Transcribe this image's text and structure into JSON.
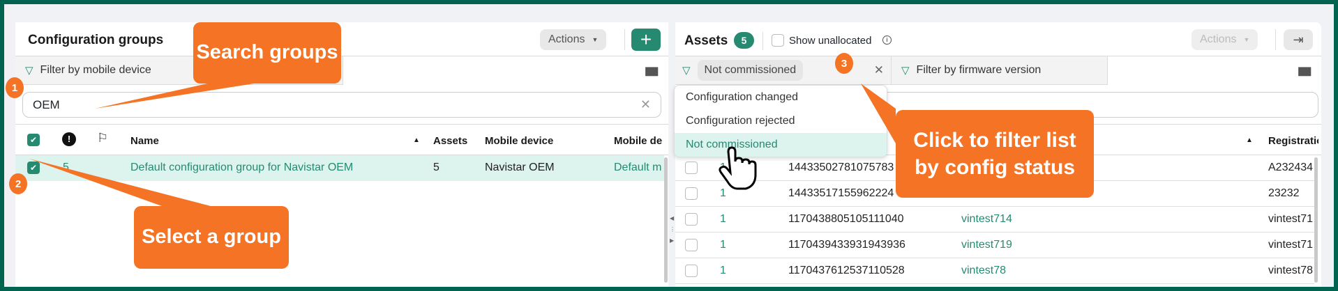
{
  "left_panel": {
    "title": "Configuration groups",
    "actions_label": "Actions",
    "add_label": "+",
    "filter_label": "Filter by mobile device",
    "search_value": "OEM",
    "columns": [
      "Name",
      "Assets",
      "Mobile device",
      "Mobile de"
    ],
    "rows": [
      {
        "alerts": "5",
        "name": "Default configuration group for Navistar OEM",
        "assets": "5",
        "mobile_device": "Navistar OEM",
        "mobile_de": "Default m",
        "selected": true
      }
    ]
  },
  "right_panel": {
    "title": "Assets",
    "count": "5",
    "show_unallocated_label": "Show unallocated",
    "actions_label": "Actions",
    "status_filter_value": "Not commissioned",
    "firmware_filter_label": "Filter by firmware version",
    "dropdown_options": [
      "Configuration changed",
      "Configuration rejected",
      "Not commissioned"
    ],
    "dropdown_selected": "Not commissioned",
    "registration_header": "Registratio",
    "rows": [
      {
        "alerts": "1",
        "id": "14433502781075783",
        "name": "",
        "registration": "A232434"
      },
      {
        "alerts": "1",
        "id": "14433517155962224",
        "name": "",
        "registration": "23232"
      },
      {
        "alerts": "1",
        "id": "1170438805105111040",
        "name": "vintest714",
        "registration": "vintest71"
      },
      {
        "alerts": "1",
        "id": "1170439433931943936",
        "name": "vintest719",
        "registration": "vintest71"
      },
      {
        "alerts": "1",
        "id": "1170437612537110528",
        "name": "vintest78",
        "registration": "vintest78"
      }
    ]
  },
  "callouts": {
    "search": "Search groups",
    "select": "Select a group",
    "filter": "Click to filter list by config status",
    "badge1": "1",
    "badge2": "2",
    "badge3": "3"
  },
  "colors": {
    "accent": "#268a71",
    "callout": "#f47324",
    "frame": "#006450",
    "selected_row": "#dcf3ee"
  }
}
